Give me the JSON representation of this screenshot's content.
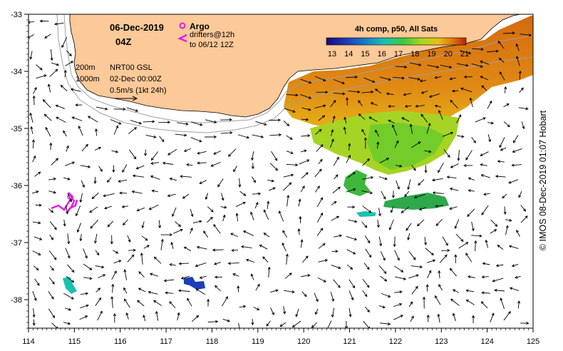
{
  "title": {
    "date": "06-Dec-2019",
    "hour": "04Z"
  },
  "legend": {
    "argo_label": "Argo",
    "drifters_line1": "drifters@12h",
    "drifters_line2": "to 06/12 12Z",
    "isobath_shallow": "200m",
    "isobath_deep": "1000m",
    "product": "NRT00 GSL",
    "product_date": "02-Dec 00:00Z",
    "scale_label": "0.5m/s (1kt 24h)"
  },
  "colorbar": {
    "title": "4h comp, p50, All Sats",
    "ticks": [
      "13",
      "14",
      "15",
      "16",
      "17",
      "18",
      "19",
      "20",
      "21"
    ],
    "colors": [
      "#1a0a7a",
      "#1c3fb8",
      "#1a86c8",
      "#19c2b0",
      "#3ec93c",
      "#a8d820",
      "#e6c014",
      "#e07a10",
      "#b8200c"
    ]
  },
  "axes": {
    "lon_ticks": [
      "114",
      "115",
      "116",
      "117",
      "118",
      "119",
      "120",
      "121",
      "122",
      "123",
      "124",
      "125"
    ],
    "lat_ticks": [
      "-33",
      "-34",
      "-35",
      "-36",
      "-37",
      "-38"
    ],
    "lon_range": [
      114,
      125
    ],
    "lat_range": [
      -38.5,
      -33
    ]
  },
  "credit": "© IMOS 08-Dec-2019 01:07 Hobart",
  "colors": {
    "land": "#fcc998",
    "sea": "#ffffff",
    "isobath": "#a0a0a0",
    "argo": "#e020e0",
    "drifter": "#e020e0"
  }
}
